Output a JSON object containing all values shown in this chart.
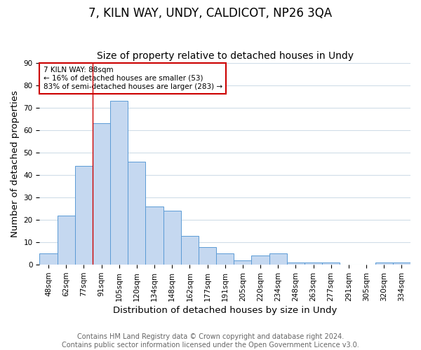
{
  "title": "7, KILN WAY, UNDY, CALDICOT, NP26 3QA",
  "subtitle": "Size of property relative to detached houses in Undy",
  "xlabel": "Distribution of detached houses by size in Undy",
  "ylabel": "Number of detached properties",
  "bar_labels": [
    "48sqm",
    "62sqm",
    "77sqm",
    "91sqm",
    "105sqm",
    "120sqm",
    "134sqm",
    "148sqm",
    "162sqm",
    "177sqm",
    "191sqm",
    "205sqm",
    "220sqm",
    "234sqm",
    "248sqm",
    "263sqm",
    "277sqm",
    "291sqm",
    "305sqm",
    "320sqm",
    "334sqm"
  ],
  "bar_heights": [
    5,
    22,
    44,
    63,
    73,
    46,
    26,
    24,
    13,
    8,
    5,
    2,
    4,
    5,
    1,
    1,
    1,
    0,
    0,
    1,
    1
  ],
  "bar_color": "#c5d8f0",
  "bar_edge_color": "#5b9bd5",
  "annotation_line1": "7 KILN WAY: 88sqm",
  "annotation_line2": "← 16% of detached houses are smaller (53)",
  "annotation_line3": "83% of semi-detached houses are larger (283) →",
  "annotation_box_color": "#ffffff",
  "annotation_box_edge_color": "#cc0000",
  "redline_x": 2.5,
  "ylim": [
    0,
    90
  ],
  "yticks": [
    0,
    10,
    20,
    30,
    40,
    50,
    60,
    70,
    80,
    90
  ],
  "grid_color": "#d0dde8",
  "footer_text": "Contains HM Land Registry data © Crown copyright and database right 2024.\nContains public sector information licensed under the Open Government Licence v3.0.",
  "title_fontsize": 12,
  "subtitle_fontsize": 10,
  "axis_label_fontsize": 9.5,
  "tick_fontsize": 7.5,
  "annotation_fontsize": 7.5,
  "footer_fontsize": 7
}
